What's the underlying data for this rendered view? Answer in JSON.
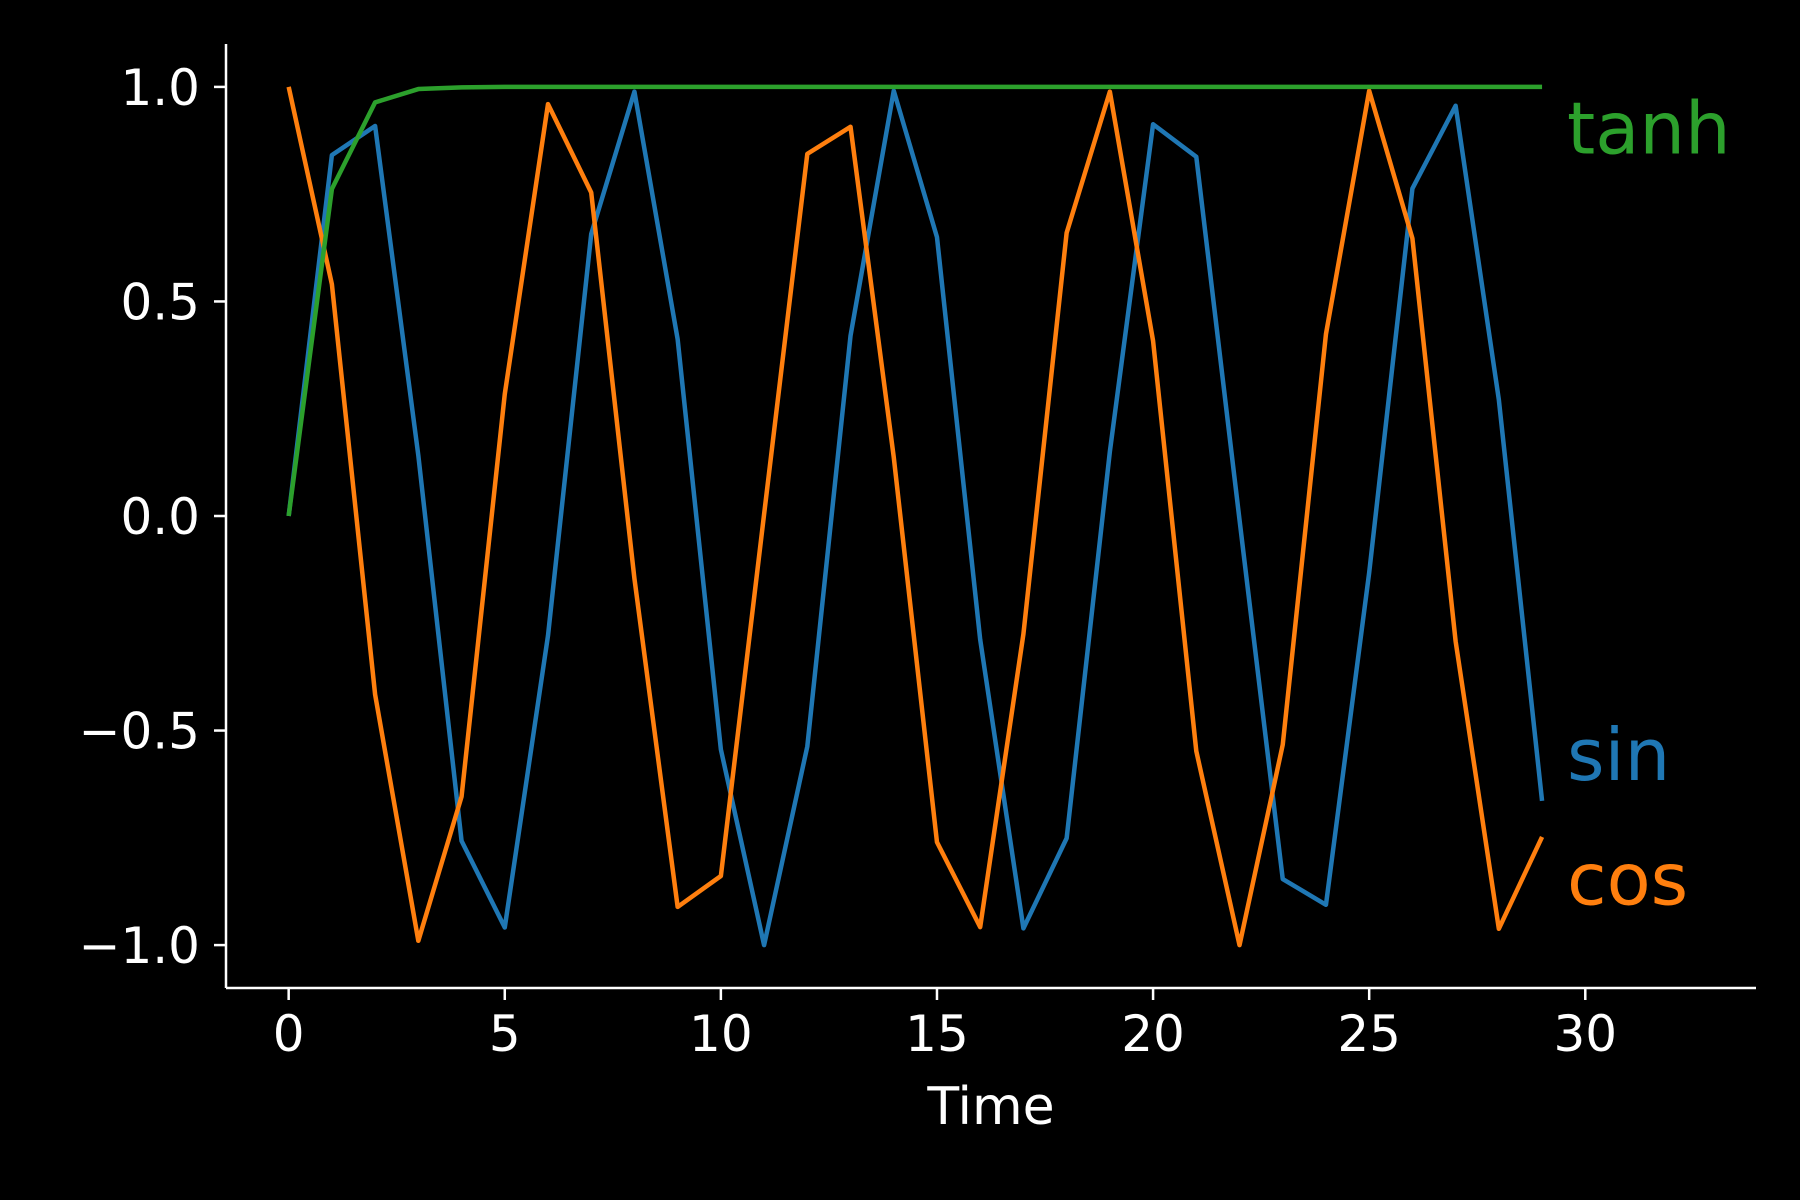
{
  "chart_data": {
    "type": "line",
    "title": "",
    "xlabel": "Time",
    "ylabel": "",
    "xlim": [
      -1.45,
      33.95
    ],
    "ylim": [
      -1.1,
      1.1
    ],
    "xticks": [
      0,
      5,
      10,
      15,
      20,
      25,
      30
    ],
    "xtick_labels": [
      "0",
      "5",
      "10",
      "15",
      "20",
      "25",
      "30"
    ],
    "yticks": [
      -1.0,
      -0.5,
      0.0,
      0.5,
      1.0
    ],
    "ytick_labels": [
      "−1.0",
      "−0.5",
      "0.0",
      "0.5",
      "1.0"
    ],
    "grid": false,
    "legend": "inline labels at right end of each line",
    "x": [
      0,
      1,
      2,
      3,
      4,
      5,
      6,
      7,
      8,
      9,
      10,
      11,
      12,
      13,
      14,
      15,
      16,
      17,
      18,
      19,
      20,
      21,
      22,
      23,
      24,
      25,
      26,
      27,
      28,
      29
    ],
    "series": [
      {
        "name": "sin",
        "label": "sin",
        "color": "#1f77b4",
        "values": [
          0.0,
          0.841,
          0.909,
          0.141,
          -0.757,
          -0.959,
          -0.279,
          0.657,
          0.989,
          0.412,
          -0.544,
          -1.0,
          -0.537,
          0.42,
          0.991,
          0.65,
          -0.288,
          -0.961,
          -0.751,
          0.15,
          0.913,
          0.837,
          -0.009,
          -0.846,
          -0.906,
          -0.132,
          0.763,
          0.956,
          0.271,
          -0.664
        ]
      },
      {
        "name": "cos",
        "label": "cos",
        "color": "#ff7f0e",
        "values": [
          1.0,
          0.54,
          -0.416,
          -0.99,
          -0.654,
          0.284,
          0.96,
          0.754,
          -0.146,
          -0.911,
          -0.839,
          0.004,
          0.844,
          0.907,
          0.137,
          -0.76,
          -0.958,
          -0.275,
          0.66,
          0.989,
          0.408,
          -0.548,
          -1.0,
          -0.533,
          0.424,
          0.991,
          0.647,
          -0.292,
          -0.962,
          -0.748
        ]
      },
      {
        "name": "tanh",
        "label": "tanh",
        "color": "#2ca02c",
        "values": [
          0.0,
          0.762,
          0.964,
          0.995,
          0.999,
          1.0,
          1.0,
          1.0,
          1.0,
          1.0,
          1.0,
          1.0,
          1.0,
          1.0,
          1.0,
          1.0,
          1.0,
          1.0,
          1.0,
          1.0,
          1.0,
          1.0,
          1.0,
          1.0,
          1.0,
          1.0,
          1.0,
          1.0,
          1.0,
          1.0
        ]
      }
    ],
    "label_y_values": {
      "tanh": 0.905,
      "sin": -0.555,
      "cos": -0.845
    }
  }
}
